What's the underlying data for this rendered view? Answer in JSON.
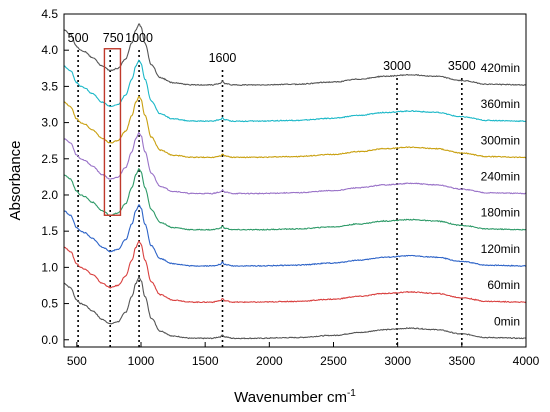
{
  "chart_data": {
    "type": "line",
    "xlabel": "Wavenumber cm",
    "xlabel_sup": "-1",
    "ylabel": "Absorbance",
    "xlim": [
      400,
      4000
    ],
    "ylim": [
      -0.1,
      4.5
    ],
    "xticks": [
      500,
      1000,
      1500,
      2000,
      2500,
      3000,
      3500,
      4000
    ],
    "yticks": [
      0.0,
      0.5,
      1.0,
      1.5,
      2.0,
      2.5,
      3.0,
      3.5,
      4.0,
      4.5
    ],
    "grid": false,
    "reference_lines": [
      {
        "x": 510,
        "label": "500"
      },
      {
        "x": 760,
        "label": "750"
      },
      {
        "x": 985,
        "label": "1000"
      },
      {
        "x": 1635,
        "label": "1600"
      },
      {
        "x": 2995,
        "label": "3000"
      },
      {
        "x": 3500,
        "label": "3500"
      }
    ],
    "highlight_box": {
      "x": [
        715,
        840
      ],
      "y": [
        1.72,
        4.02
      ],
      "color": "#c0392b"
    },
    "series": [
      {
        "name": "0min",
        "offset": 0.0,
        "color": "#555555"
      },
      {
        "name": "60min",
        "offset": 0.5,
        "color": "#d9403f"
      },
      {
        "name": "120min",
        "offset": 1.0,
        "color": "#2e64c8"
      },
      {
        "name": "180min",
        "offset": 1.5,
        "color": "#2e9a68"
      },
      {
        "name": "240min",
        "offset": 2.0,
        "color": "#9a73c8"
      },
      {
        "name": "300min",
        "offset": 2.5,
        "color": "#c9a010"
      },
      {
        "name": "360min",
        "offset": 3.0,
        "color": "#1cb8c8"
      },
      {
        "name": "420min",
        "offset": 3.5,
        "color": "#555555"
      }
    ],
    "base_profile": {
      "x": [
        400,
        450,
        500,
        530,
        560,
        620,
        700,
        760,
        820,
        880,
        930,
        960,
        985,
        1000,
        1030,
        1080,
        1150,
        1250,
        1400,
        1550,
        1620,
        1635,
        1650,
        1720,
        1900,
        2200,
        2500,
        2700,
        2900,
        3100,
        3300,
        3500,
        3700,
        4000
      ],
      "y": [
        0.78,
        0.72,
        0.55,
        0.5,
        0.48,
        0.4,
        0.28,
        0.22,
        0.25,
        0.38,
        0.6,
        0.78,
        0.86,
        0.82,
        0.6,
        0.3,
        0.12,
        0.05,
        0.02,
        0.02,
        0.04,
        0.07,
        0.04,
        0.02,
        0.02,
        0.03,
        0.06,
        0.1,
        0.14,
        0.16,
        0.14,
        0.08,
        0.03,
        0.02
      ]
    }
  }
}
